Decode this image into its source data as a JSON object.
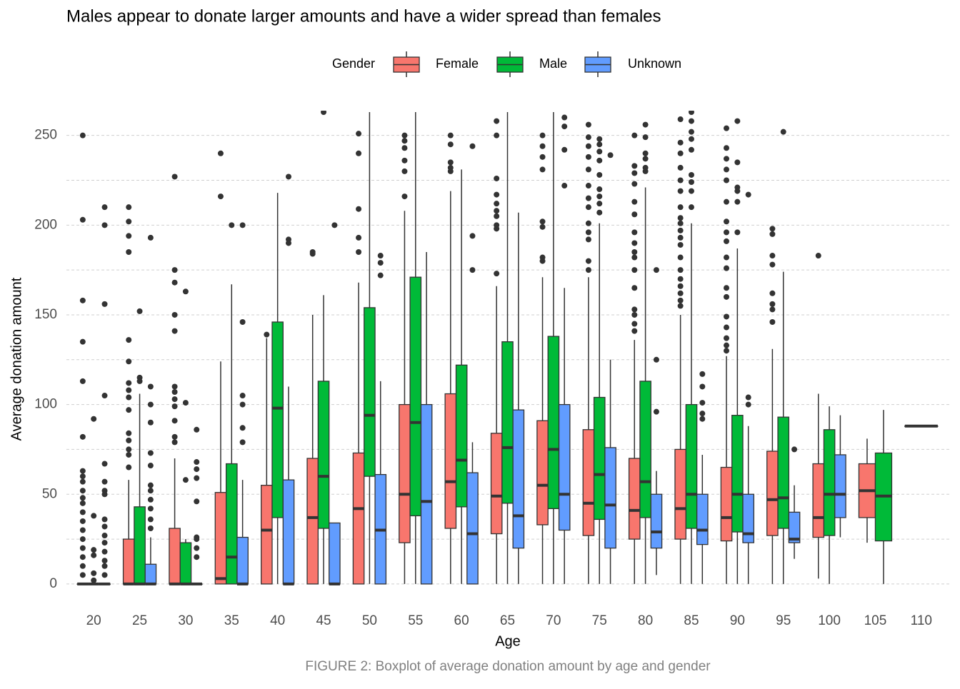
{
  "chart_data": {
    "type": "boxplot",
    "title": "Males appear to donate larger amounts and have a wider spread than females",
    "x_label": "Age",
    "y_label": "Average donation amount",
    "caption": "FIGURE 2: Boxplot of average donation amount by age and gender",
    "legend_title": "Gender",
    "legend_position": "top",
    "grid": true,
    "categories": [
      "20",
      "25",
      "30",
      "35",
      "40",
      "45",
      "50",
      "55",
      "60",
      "65",
      "70",
      "75",
      "80",
      "85",
      "90",
      "95",
      "100",
      "105",
      "110"
    ],
    "ylim": [
      -8,
      263
    ],
    "yticks": [
      0,
      50,
      100,
      150,
      200,
      250
    ],
    "minor_yticks": [
      25,
      75,
      125,
      175,
      225
    ],
    "series": [
      {
        "name": "Female",
        "color": "#F8766D",
        "boxes": [
          {
            "lower": 0,
            "q1": 0,
            "median": 0,
            "q3": 0,
            "upper": 0,
            "outliers": [
              250,
              203,
              158,
              135,
              113,
              82,
              63,
              60,
              57,
              52,
              48,
              45,
              40,
              35,
              30,
              25,
              20,
              15,
              10,
              5
            ]
          },
          {
            "lower": 0,
            "q1": 0,
            "median": 0,
            "q3": 25,
            "upper": 58,
            "outliers": [
              210,
              202,
              194,
              185,
              136,
              124,
              112,
              108,
              104,
              97,
              84,
              80,
              75,
              72,
              65
            ]
          },
          {
            "lower": 0,
            "q1": 0,
            "median": 0,
            "q3": 31,
            "upper": 70,
            "outliers": [
              227,
              175,
              168,
              150,
              141,
              110,
              107,
              103,
              99,
              91,
              82,
              79
            ]
          },
          {
            "lower": 0,
            "q1": 0,
            "median": 3,
            "q3": 51,
            "upper": 124,
            "outliers": [
              240,
              216
            ]
          },
          {
            "lower": 0,
            "q1": 0,
            "median": 30,
            "q3": 55,
            "upper": 137,
            "outliers": [
              139
            ]
          },
          {
            "lower": 0,
            "q1": 0,
            "median": 37,
            "q3": 70,
            "upper": 150,
            "outliers": [
              185,
              184
            ]
          },
          {
            "lower": 0,
            "q1": 0,
            "median": 42,
            "q3": 73,
            "upper": 168,
            "outliers": [
              251,
              240,
              209,
              193,
              185
            ]
          },
          {
            "lower": 0,
            "q1": 23,
            "median": 50,
            "q3": 100,
            "upper": 208,
            "outliers": [
              250,
              247,
              243,
              236,
              230,
              216
            ]
          },
          {
            "lower": 0,
            "q1": 31,
            "median": 57,
            "q3": 106,
            "upper": 219,
            "outliers": [
              250,
              245,
              235,
              232,
              230
            ]
          },
          {
            "lower": 0,
            "q1": 28,
            "median": 49,
            "q3": 84,
            "upper": 166,
            "outliers": [
              258,
              250,
              226,
              217,
              212,
              208,
              205,
              200,
              198,
              173
            ]
          },
          {
            "lower": 0,
            "q1": 33,
            "median": 55,
            "q3": 91,
            "upper": 171,
            "outliers": [
              250,
              244,
              238,
              231,
              202,
              199,
              182,
              180
            ]
          },
          {
            "lower": 0,
            "q1": 27,
            "median": 45,
            "q3": 86,
            "upper": 171,
            "outliers": [
              256,
              249,
              244,
              238,
              231,
              222,
              215,
              210,
              201,
              196,
              192,
              180,
              175
            ]
          },
          {
            "lower": 0,
            "q1": 25,
            "median": 41,
            "q3": 70,
            "upper": 136,
            "outliers": [
              250,
              233,
              229,
              223,
              213,
              206,
              196,
              190,
              185,
              182,
              175,
              165,
              153,
              150,
              145,
              141
            ]
          },
          {
            "lower": 0,
            "q1": 25,
            "median": 42,
            "q3": 75,
            "upper": 150,
            "outliers": [
              259,
              246,
              240,
              232,
              225,
              219,
              210,
              204,
              201,
              197,
              193,
              189,
              182,
              175,
              170,
              166,
              162,
              158,
              155
            ]
          },
          {
            "lower": 0,
            "q1": 24,
            "median": 37,
            "q3": 65,
            "upper": 127,
            "outliers": [
              254,
              243,
              237,
              231,
              225,
              213,
              202,
              196,
              191,
              182,
              176,
              165,
              160,
              149,
              143,
              137,
              133,
              130
            ]
          },
          {
            "lower": 0,
            "q1": 27,
            "median": 47,
            "q3": 74,
            "upper": 131,
            "outliers": [
              198,
              195,
              183,
              178,
              162,
              156,
              153,
              146
            ]
          },
          {
            "lower": 3,
            "q1": 26,
            "median": 37,
            "q3": 67,
            "upper": 106,
            "outliers": [
              183
            ]
          },
          {
            "lower": 23,
            "q1": 37,
            "median": 52,
            "q3": 67,
            "upper": 81,
            "outliers": []
          },
          {
            "lower": 88,
            "q1": 88,
            "median": 88,
            "q3": 88,
            "upper": 88,
            "outliers": []
          }
        ]
      },
      {
        "name": "Male",
        "color": "#00BA38",
        "boxes": [
          {
            "lower": 0,
            "q1": 0,
            "median": 0,
            "q3": 0,
            "upper": 0,
            "outliers": [
              92,
              38,
              19,
              16,
              6,
              2
            ]
          },
          {
            "lower": 0,
            "q1": 0,
            "median": 0,
            "q3": 43,
            "upper": 106,
            "outliers": [
              152,
              115,
              113
            ]
          },
          {
            "lower": 0,
            "q1": 0,
            "median": 0,
            "q3": 23,
            "upper": 25,
            "outliers": [
              163,
              101,
              58
            ]
          },
          {
            "lower": 0,
            "q1": 0,
            "median": 15,
            "q3": 67,
            "upper": 167,
            "outliers": [
              200
            ]
          },
          {
            "lower": 0,
            "q1": 37,
            "median": 98,
            "q3": 146,
            "upper": 218,
            "outliers": []
          },
          {
            "lower": 0,
            "q1": 31,
            "median": 60,
            "q3": 113,
            "upper": 161,
            "outliers": [
              263
            ]
          },
          {
            "lower": 0,
            "q1": 60,
            "median": 94,
            "q3": 154,
            "upper": 263,
            "outliers": []
          },
          {
            "lower": 0,
            "q1": 38,
            "median": 90,
            "q3": 171,
            "upper": 263,
            "outliers": []
          },
          {
            "lower": 0,
            "q1": 43,
            "median": 69,
            "q3": 122,
            "upper": 231,
            "outliers": []
          },
          {
            "lower": 0,
            "q1": 45,
            "median": 76,
            "q3": 135,
            "upper": 263,
            "outliers": []
          },
          {
            "lower": 0,
            "q1": 42,
            "median": 75,
            "q3": 138,
            "upper": 263,
            "outliers": []
          },
          {
            "lower": 0,
            "q1": 36,
            "median": 61,
            "q3": 104,
            "upper": 201,
            "outliers": [
              248,
              245,
              241,
              236,
              228,
              220,
              216,
              212,
              207
            ]
          },
          {
            "lower": 0,
            "q1": 37,
            "median": 57,
            "q3": 113,
            "upper": 221,
            "outliers": [
              256,
              249,
              240,
              237,
              232,
              230
            ]
          },
          {
            "lower": 0,
            "q1": 31,
            "median": 50,
            "q3": 100,
            "upper": 201,
            "outliers": [
              263,
              258,
              252,
              248,
              242,
              228,
              224,
              219,
              210
            ]
          },
          {
            "lower": 0,
            "q1": 29,
            "median": 50,
            "q3": 94,
            "upper": 187,
            "outliers": [
              258,
              235,
              221,
              219,
              213,
              196
            ]
          },
          {
            "lower": 0,
            "q1": 31,
            "median": 48,
            "q3": 93,
            "upper": 174,
            "outliers": [
              252
            ]
          },
          {
            "lower": 0,
            "q1": 27,
            "median": 50,
            "q3": 86,
            "upper": 99,
            "outliers": []
          },
          {
            "lower": 0,
            "q1": 24,
            "median": 49,
            "q3": 73,
            "upper": 97,
            "outliers": []
          },
          null
        ]
      },
      {
        "name": "Unknown",
        "color": "#619CFF",
        "boxes": [
          {
            "lower": 0,
            "q1": 0,
            "median": 0,
            "q3": 0,
            "upper": 0,
            "outliers": [
              210,
              200,
              156,
              105,
              67,
              57,
              52,
              50,
              36,
              32,
              27,
              23,
              18,
              13,
              10,
              5
            ]
          },
          {
            "lower": 0,
            "q1": 0,
            "median": 0,
            "q3": 11,
            "upper": 26,
            "outliers": [
              193,
              110,
              100,
              90,
              73,
              66,
              55,
              52,
              47,
              42,
              36,
              31
            ]
          },
          {
            "lower": 0,
            "q1": 0,
            "median": 0,
            "q3": 0,
            "upper": 0,
            "outliers": [
              86,
              68,
              64,
              59,
              46,
              26,
              25,
              20,
              15
            ]
          },
          {
            "lower": 0,
            "q1": 0,
            "median": 0,
            "q3": 26,
            "upper": 58,
            "outliers": [
              200,
              146,
              105,
              100,
              87,
              79
            ]
          },
          {
            "lower": 0,
            "q1": 0,
            "median": 0,
            "q3": 58,
            "upper": 110,
            "outliers": [
              227,
              192,
              190
            ]
          },
          {
            "lower": 0,
            "q1": 0,
            "median": 0,
            "q3": 34,
            "upper": 34,
            "outliers": [
              200
            ]
          },
          {
            "lower": 0,
            "q1": 0,
            "median": 30,
            "q3": 61,
            "upper": 113,
            "outliers": [
              183,
              179,
              172
            ]
          },
          {
            "lower": 0,
            "q1": 0,
            "median": 46,
            "q3": 100,
            "upper": 185,
            "outliers": []
          },
          {
            "lower": 0,
            "q1": 0,
            "median": 28,
            "q3": 62,
            "upper": 79,
            "outliers": [
              244,
              194,
              175
            ]
          },
          {
            "lower": 0,
            "q1": 20,
            "median": 38,
            "q3": 97,
            "upper": 207,
            "outliers": []
          },
          {
            "lower": 0,
            "q1": 30,
            "median": 50,
            "q3": 100,
            "upper": 165,
            "outliers": [
              260,
              255,
              242,
              222
            ]
          },
          {
            "lower": 0,
            "q1": 20,
            "median": 44,
            "q3": 76,
            "upper": 125,
            "outliers": [
              239
            ]
          },
          {
            "lower": 5,
            "q1": 20,
            "median": 29,
            "q3": 50,
            "upper": 63,
            "outliers": [
              175,
              125,
              96
            ]
          },
          {
            "lower": 0,
            "q1": 22,
            "median": 30,
            "q3": 50,
            "upper": 72,
            "outliers": [
              117,
              110,
              101,
              95,
              92
            ]
          },
          {
            "lower": 0,
            "q1": 23,
            "median": 28,
            "q3": 50,
            "upper": 88,
            "outliers": [
              217,
              104,
              100
            ]
          },
          {
            "lower": 14,
            "q1": 23,
            "median": 25,
            "q3": 40,
            "upper": 55,
            "outliers": [
              75
            ]
          },
          {
            "lower": 26,
            "q1": 37,
            "median": 50,
            "q3": 72,
            "upper": 94,
            "outliers": []
          },
          null,
          null
        ]
      }
    ]
  }
}
